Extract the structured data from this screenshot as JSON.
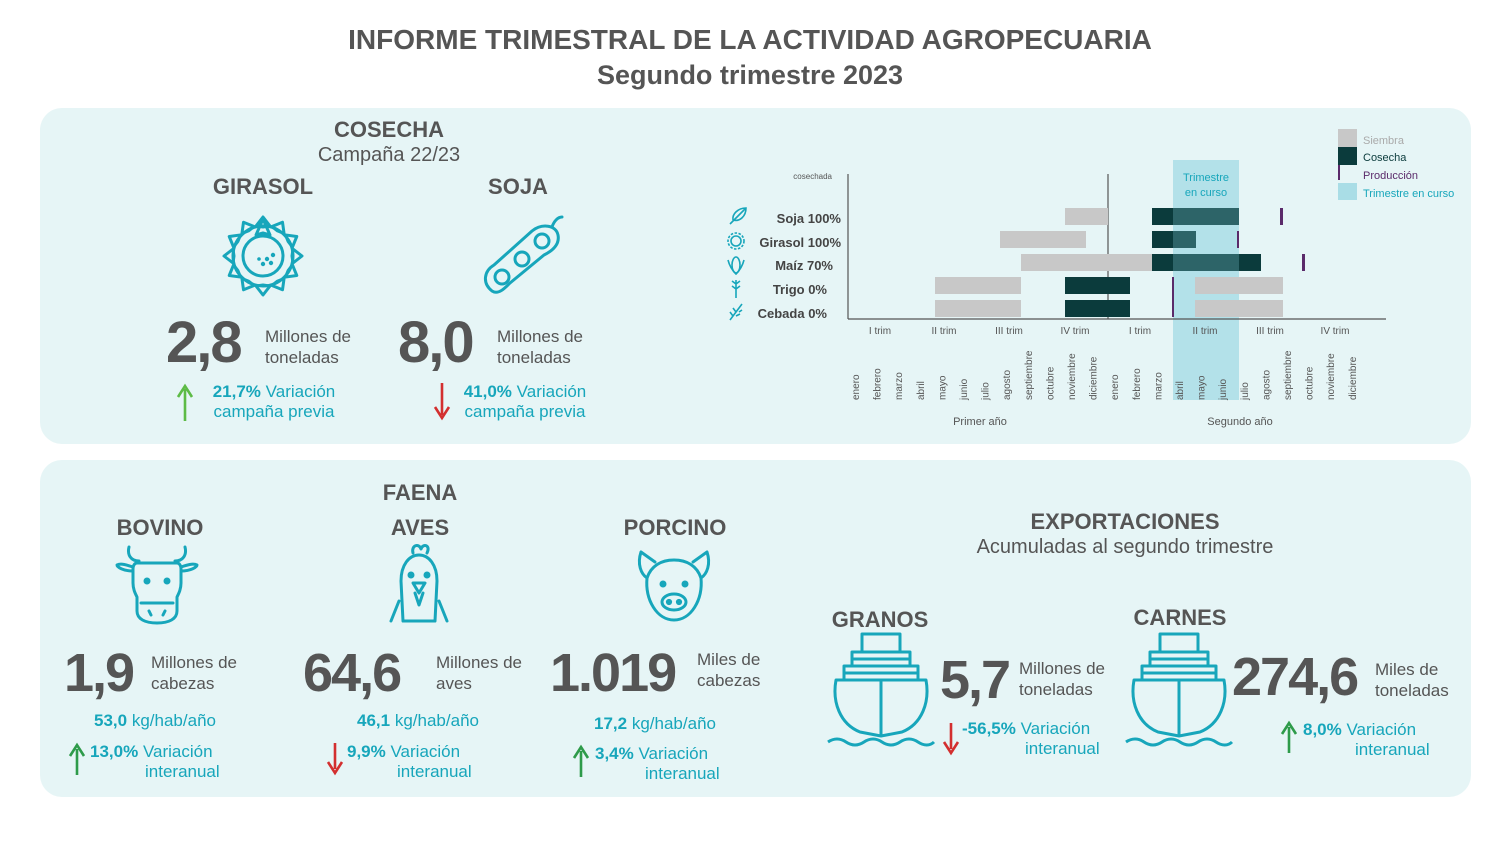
{
  "header": {
    "title": "INFORME TRIMESTRAL DE LA ACTIVIDAD AGROPECUARIA",
    "subtitle": "Segundo trimestre 2023"
  },
  "colors": {
    "teal": "#17a6bb",
    "panel_bg": "#e6f5f6",
    "up_arrow": "#2e9b4a",
    "down_arrow": "#d32f2f",
    "siembra": "#c8c8c8",
    "cosecha": "#0b3b3c",
    "produccion": "#5a2a6a",
    "trimestre_en_curso": "#a9dde6"
  },
  "cosecha": {
    "title": "COSECHA",
    "subtitle": "Campaña 22/23",
    "girasol": {
      "name": "GIRASOL",
      "value": "2,8",
      "unit_line1": "Millones de",
      "unit_line2": "toneladas",
      "var_value": "21,7%",
      "var_label1": "Variación",
      "var_label2": "campaña previa",
      "icon": "sunflower-icon"
    },
    "soja": {
      "name": "SOJA",
      "value": "8,0",
      "unit_line1": "Millones de",
      "unit_line2": "toneladas",
      "var_value": "41,0%",
      "var_label1": "Variación",
      "var_label2": "campaña previa",
      "icon": "soy-pod-icon"
    }
  },
  "calendar": {
    "y_label": "cosechada",
    "legend": [
      {
        "label": "Siembra",
        "color": "#c8c8c8"
      },
      {
        "label": "Cosecha",
        "color": "#0b3b3c"
      },
      {
        "label": "Producción",
        "color": "#5a2a6a"
      },
      {
        "label": "Trimestre en curso",
        "color": "#a9dde6"
      }
    ],
    "current_label1": "Trimestre",
    "current_label2": "en curso",
    "rows": [
      {
        "label": "Soja 100%",
        "icon": "soy-leaf-icon"
      },
      {
        "label": "Girasol 100%",
        "icon": "sunflower-icon"
      },
      {
        "label": "Maíz 70%",
        "icon": "corn-icon"
      },
      {
        "label": "Trigo 0%",
        "icon": "wheat-icon"
      },
      {
        "label": "Cebada 0%",
        "icon": "barley-icon"
      }
    ],
    "quarters": [
      "I trim",
      "II trim",
      "III trim",
      "IV trim",
      "I trim",
      "II trim",
      "III trim",
      "IV trim"
    ],
    "months": [
      "enero",
      "febrero",
      "marzo",
      "abril",
      "mayo",
      "junio",
      "julio",
      "agosto",
      "septiembre",
      "octubre",
      "noviembre",
      "diciembre",
      "enero",
      "febrero",
      "marzo",
      "abril",
      "mayo",
      "junio",
      "julio",
      "agosto",
      "septiembre",
      "octubre",
      "noviembre",
      "diciembre"
    ],
    "year1": "Primer año",
    "year2": "Segundo año"
  },
  "faena": {
    "title": "FAENA",
    "bovino": {
      "name": "BOVINO",
      "value": "1,9",
      "unit_line1": "Millones de",
      "unit_line2": "cabezas",
      "cons_value": "53,0",
      "cons_unit": "kg/hab/año",
      "var_value": "13,0%",
      "var_label1": "Variación",
      "var_label2": "interanual"
    },
    "aves": {
      "name": "AVES",
      "value": "64,6",
      "unit_line1": "Millones de",
      "unit_line2": "aves",
      "cons_value": "46,1",
      "cons_unit": "kg/hab/año",
      "var_value": "9,9%",
      "var_label1": "Variación",
      "var_label2": "interanual"
    },
    "porcino": {
      "name": "PORCINO",
      "value": "1.019",
      "unit_line1": "Miles de",
      "unit_line2": "cabezas",
      "cons_value": "17,2",
      "cons_unit": "kg/hab/año",
      "var_value": "3,4%",
      "var_label1": "Variación",
      "var_label2": "interanual"
    }
  },
  "exportaciones": {
    "title": "EXPORTACIONES",
    "subtitle": "Acumuladas al segundo trimestre",
    "granos": {
      "name": "GRANOS",
      "value": "5,7",
      "unit_line1": "Millones de",
      "unit_line2": "toneladas",
      "var_value": "-56,5%",
      "var_label1": "Variación",
      "var_label2": "interanual"
    },
    "carnes": {
      "name": "CARNES",
      "value": "274,6",
      "unit_line1": "Miles de",
      "unit_line2": "toneladas",
      "var_value": "8,0%",
      "var_label1": "Variación",
      "var_label2": "interanual"
    }
  }
}
